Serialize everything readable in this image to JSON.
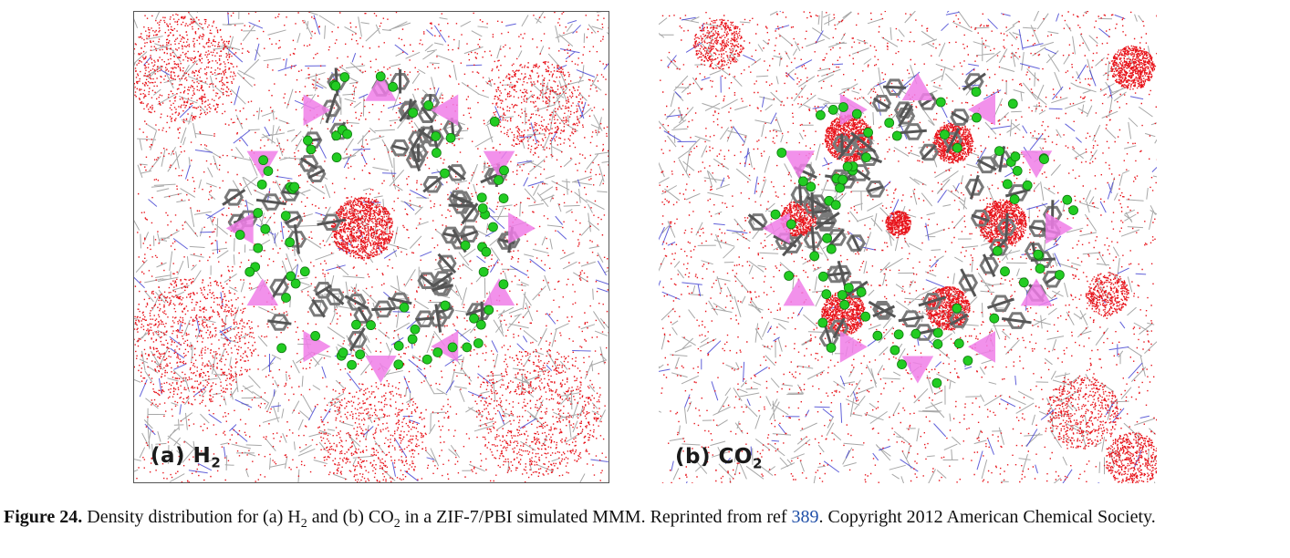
{
  "panels": [
    {
      "id": "a",
      "label_prefix": "(a) H",
      "label_sub": "2"
    },
    {
      "id": "b",
      "label_prefix": "(b) CO",
      "label_sub": "2"
    }
  ],
  "caption": {
    "figure_number": "Figure 24.",
    "text_1": " Density distribution for (a) H",
    "sub_1": "2",
    "text_2": " and (b) CO",
    "sub_2": "2",
    "text_3": " in a ZIF-7/PBI simulated MMM. Reprinted from ref ",
    "ref": "389",
    "text_4": ". Copyright 2012 American Chemical Society."
  },
  "colors": {
    "density_points": "#e8141b",
    "polymer_carbon": "#8a8a8a",
    "polymer_nitrogen": "#3a3ad0",
    "zif_atoms": "#22cc22",
    "zinc_tetrahedra": "#f07ee8",
    "zif_bonds": "#555555"
  }
}
